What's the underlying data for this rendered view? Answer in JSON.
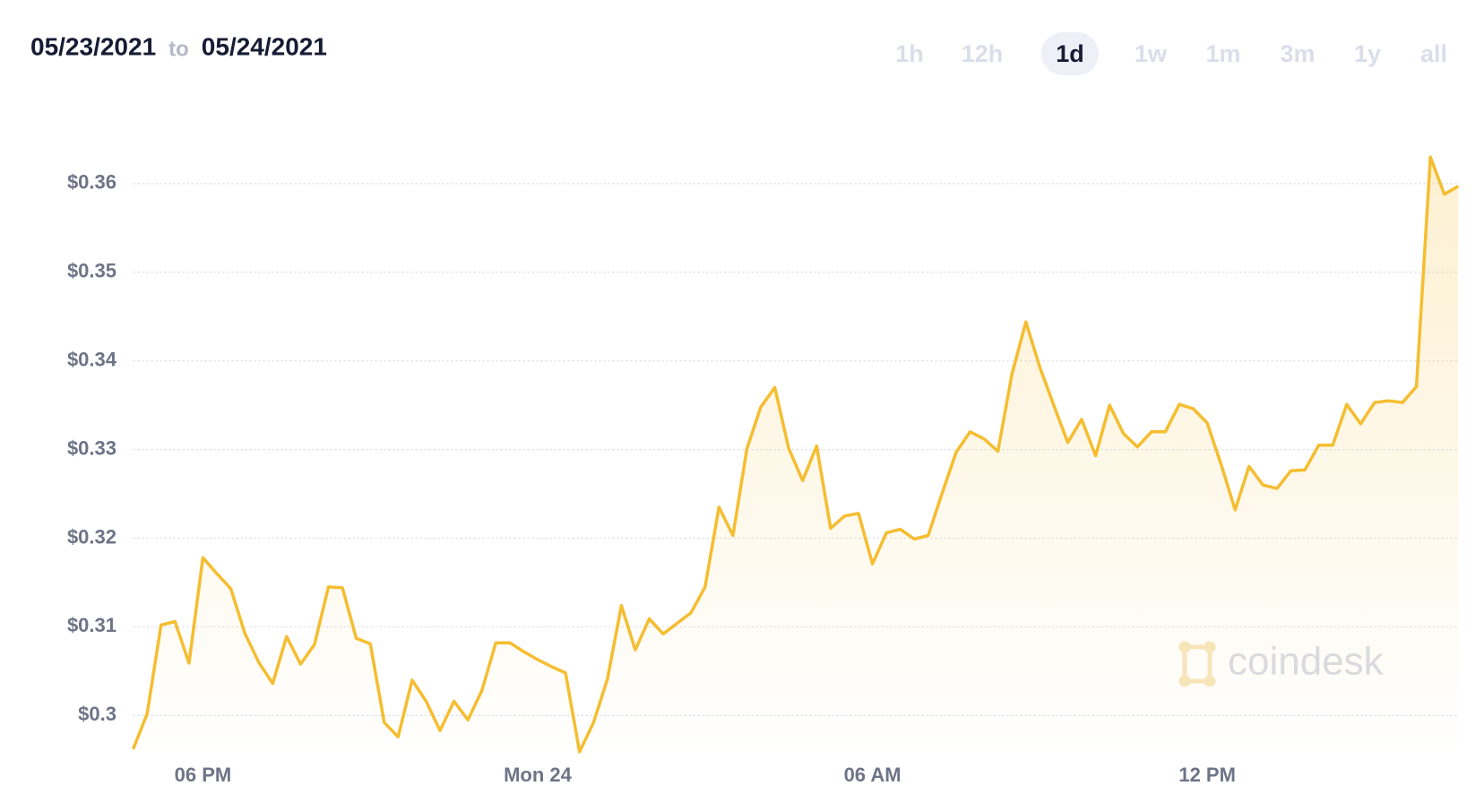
{
  "header": {
    "date_from": "05/23/2021",
    "to": "to",
    "date_to": "05/24/2021",
    "ranges": [
      "1h",
      "12h",
      "1d",
      "1w",
      "1m",
      "3m",
      "1y",
      "all"
    ],
    "selected": "1d"
  },
  "watermark": "coindesk",
  "chart_data": {
    "type": "area",
    "color": "#f5bd30",
    "grid": true,
    "x": [
      "2021-05-23T16:45",
      "2021-05-23T17:00",
      "2021-05-23T17:15",
      "2021-05-23T17:30",
      "2021-05-23T17:45",
      "2021-05-23T18:00",
      "2021-05-23T18:15",
      "2021-05-23T18:30",
      "2021-05-23T18:45",
      "2021-05-23T19:00",
      "2021-05-23T19:15",
      "2021-05-23T19:30",
      "2021-05-23T19:45",
      "2021-05-23T20:00",
      "2021-05-23T20:15",
      "2021-05-23T20:30",
      "2021-05-23T20:45",
      "2021-05-23T21:00",
      "2021-05-23T21:15",
      "2021-05-23T21:30",
      "2021-05-23T21:45",
      "2021-05-23T22:00",
      "2021-05-23T22:15",
      "2021-05-23T22:30",
      "2021-05-23T22:45",
      "2021-05-23T23:00",
      "2021-05-23T23:15",
      "2021-05-23T23:30",
      "2021-05-23T23:45",
      "2021-05-24T00:00",
      "2021-05-24T00:15",
      "2021-05-24T00:30",
      "2021-05-24T00:45",
      "2021-05-24T01:00",
      "2021-05-24T01:15",
      "2021-05-24T01:30",
      "2021-05-24T01:45",
      "2021-05-24T02:00",
      "2021-05-24T02:15",
      "2021-05-24T02:30",
      "2021-05-24T02:45",
      "2021-05-24T03:00",
      "2021-05-24T03:15",
      "2021-05-24T03:30",
      "2021-05-24T03:45",
      "2021-05-24T04:00",
      "2021-05-24T04:15",
      "2021-05-24T04:30",
      "2021-05-24T04:45",
      "2021-05-24T05:00",
      "2021-05-24T05:15",
      "2021-05-24T05:30",
      "2021-05-24T05:45",
      "2021-05-24T06:00",
      "2021-05-24T06:15",
      "2021-05-24T06:30",
      "2021-05-24T06:45",
      "2021-05-24T07:00",
      "2021-05-24T07:15",
      "2021-05-24T07:30",
      "2021-05-24T07:45",
      "2021-05-24T08:00",
      "2021-05-24T08:15",
      "2021-05-24T08:30",
      "2021-05-24T08:45",
      "2021-05-24T09:00",
      "2021-05-24T09:15",
      "2021-05-24T09:30",
      "2021-05-24T09:45",
      "2021-05-24T10:00",
      "2021-05-24T10:15",
      "2021-05-24T10:30",
      "2021-05-24T10:45",
      "2021-05-24T11:00",
      "2021-05-24T11:15",
      "2021-05-24T11:30",
      "2021-05-24T11:45",
      "2021-05-24T12:00",
      "2021-05-24T12:15",
      "2021-05-24T12:30",
      "2021-05-24T12:45",
      "2021-05-24T13:00",
      "2021-05-24T13:15",
      "2021-05-24T13:30",
      "2021-05-24T13:45",
      "2021-05-24T14:00",
      "2021-05-24T14:15",
      "2021-05-24T14:30",
      "2021-05-24T14:45",
      "2021-05-24T15:00",
      "2021-05-24T15:15",
      "2021-05-24T15:30",
      "2021-05-24T15:45",
      "2021-05-24T16:00",
      "2021-05-24T16:15",
      "2021-05-24T16:30"
    ],
    "values": [
      0.2962,
      0.3002,
      0.3102,
      0.3106,
      0.3059,
      0.3178,
      0.316,
      0.3143,
      0.3093,
      0.306,
      0.3036,
      0.3089,
      0.3058,
      0.308,
      0.3145,
      0.3144,
      0.3087,
      0.3081,
      0.2992,
      0.2976,
      0.304,
      0.3016,
      0.2983,
      0.3016,
      0.2995,
      0.3028,
      0.3082,
      0.3082,
      0.3072,
      0.3063,
      0.3055,
      0.3048,
      0.2959,
      0.2992,
      0.3041,
      0.3124,
      0.3074,
      0.3109,
      0.3092,
      0.3104,
      0.3116,
      0.3145,
      0.3235,
      0.3203,
      0.3301,
      0.3348,
      0.337,
      0.3301,
      0.3265,
      0.3304,
      0.3211,
      0.3225,
      0.3228,
      0.3171,
      0.3206,
      0.321,
      0.3199,
      0.3203,
      0.3251,
      0.3297,
      0.332,
      0.3312,
      0.3298,
      0.3385,
      0.3444,
      0.3393,
      0.335,
      0.3308,
      0.3334,
      0.3293,
      0.335,
      0.3318,
      0.3303,
      0.332,
      0.332,
      0.3351,
      0.3346,
      0.333,
      0.3283,
      0.3232,
      0.3281,
      0.326,
      0.3256,
      0.3276,
      0.3277,
      0.3305,
      0.3305,
      0.3351,
      0.3329,
      0.3353,
      0.3355,
      0.3353,
      0.3371,
      0.363,
      0.3588,
      0.3597
    ],
    "xlim": [
      "2021-05-23T16:45",
      "2021-05-24T16:30"
    ],
    "xticks": [
      {
        "value": "2021-05-23T18:00",
        "label": "06 PM"
      },
      {
        "value": "2021-05-24T00:00",
        "label": "Mon 24"
      },
      {
        "value": "2021-05-24T06:00",
        "label": "06 AM"
      },
      {
        "value": "2021-05-24T12:00",
        "label": "12 PM"
      }
    ],
    "ylim": [
      0.295,
      0.365
    ],
    "yticks": [
      {
        "value": 0.3,
        "label": "$0.3"
      },
      {
        "value": 0.31,
        "label": "$0.31"
      },
      {
        "value": 0.32,
        "label": "$0.32"
      },
      {
        "value": 0.33,
        "label": "$0.33"
      },
      {
        "value": 0.34,
        "label": "$0.34"
      },
      {
        "value": 0.35,
        "label": "$0.35"
      },
      {
        "value": 0.36,
        "label": "$0.36"
      }
    ]
  }
}
